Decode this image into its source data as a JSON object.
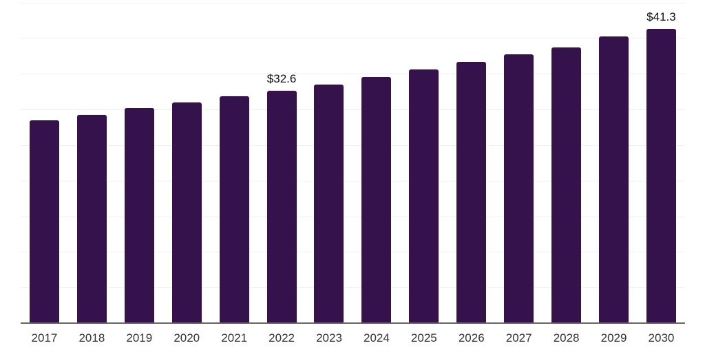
{
  "chart_data": {
    "type": "bar",
    "categories": [
      "2017",
      "2018",
      "2019",
      "2020",
      "2021",
      "2022",
      "2023",
      "2024",
      "2025",
      "2026",
      "2027",
      "2028",
      "2029",
      "2030"
    ],
    "series": [
      {
        "name": "value",
        "values": [
          28.5,
          29.2,
          30.2,
          31.0,
          31.8,
          32.6,
          33.5,
          34.5,
          35.6,
          36.7,
          37.7,
          38.7,
          40.2,
          41.3
        ]
      }
    ],
    "data_labels": [
      {
        "index": 5,
        "category": "2022",
        "text": "$32.6"
      },
      {
        "index": 13,
        "category": "2030",
        "text": "$41.3"
      }
    ],
    "ylim": [
      0,
      45
    ],
    "gridline_step": 5,
    "grid": "horizontal",
    "legend": "none",
    "colors": {
      "bar": "#35124B",
      "background": "#ffffff",
      "gridline": "#f0f0f0",
      "axis_line": "#666666",
      "tick_label": "#333333",
      "data_label": "#111111"
    }
  }
}
